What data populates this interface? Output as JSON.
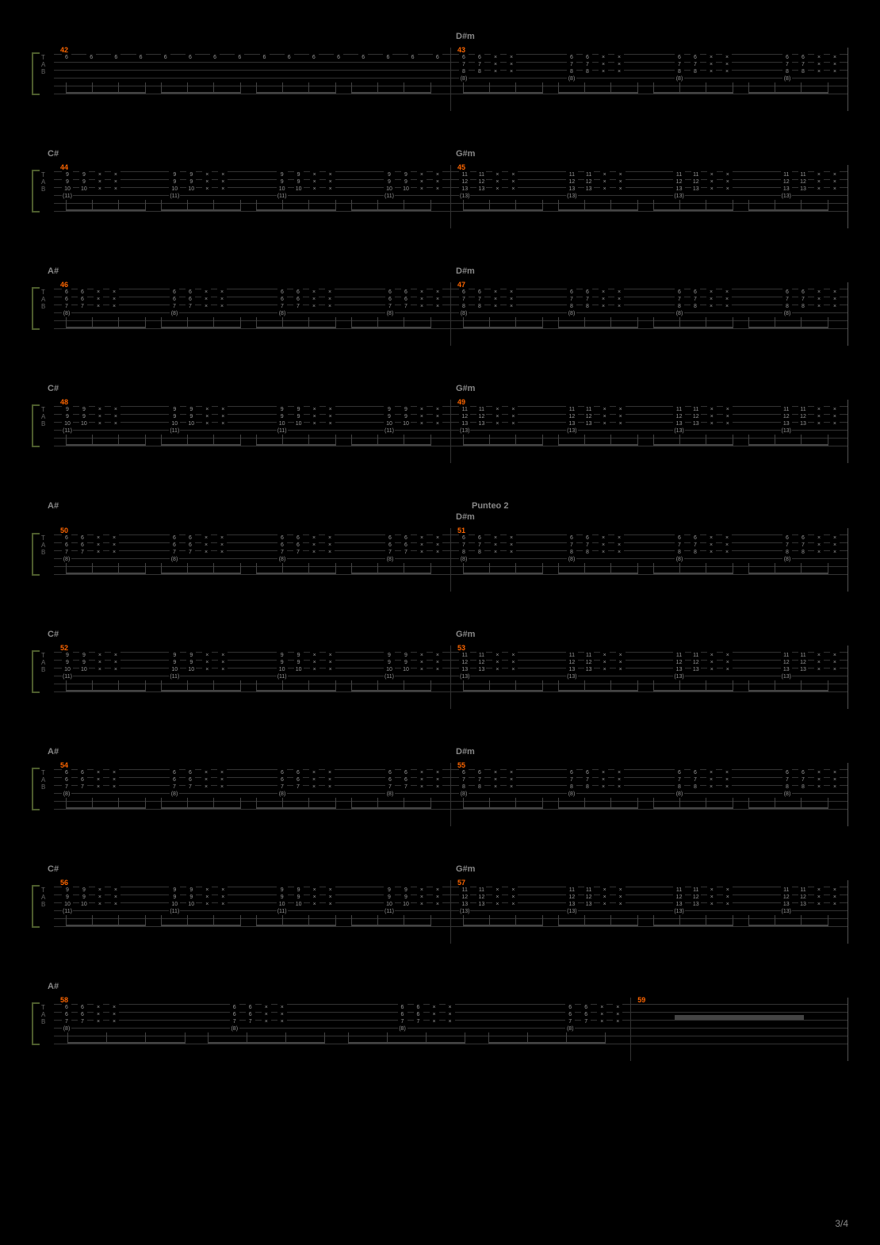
{
  "page_number": "3/4",
  "background_color": "#000000",
  "line_color": "#333333",
  "text_color": "#888888",
  "measure_num_color": "#ff6600",
  "bracket_color": "#4d5d2d",
  "tab_label": [
    "T",
    "A",
    "B"
  ],
  "systems": [
    {
      "chords": [
        "",
        "D#m"
      ],
      "section": "",
      "measures": [
        {
          "num": "42",
          "type": "single_line",
          "frets": [
            "6",
            "6",
            "6",
            "6",
            "6",
            "6",
            "6",
            "6",
            "6",
            "6",
            "6",
            "6",
            "6",
            "6",
            "6",
            "6"
          ],
          "string_idx": 4
        },
        {
          "num": "43",
          "type": "chord_pattern",
          "stacks": [
            [
              "6",
              "7",
              "8",
              "(8)"
            ],
            [
              "6",
              "7",
              "8",
              ""
            ]
          ],
          "repeat": 4
        }
      ]
    },
    {
      "chords": [
        "C#",
        "G#m"
      ],
      "section": "",
      "measures": [
        {
          "num": "44",
          "type": "chord_pattern",
          "stacks": [
            [
              "9",
              "9",
              "10",
              "(11)"
            ],
            [
              "9",
              "9",
              "10",
              ""
            ]
          ],
          "repeat": 4
        },
        {
          "num": "45",
          "type": "chord_pattern",
          "stacks": [
            [
              "11",
              "12",
              "13",
              "(13)"
            ],
            [
              "11",
              "12",
              "13",
              ""
            ]
          ],
          "repeat": 4
        }
      ]
    },
    {
      "chords": [
        "A#",
        "D#m"
      ],
      "section": "",
      "measures": [
        {
          "num": "46",
          "type": "chord_pattern",
          "stacks": [
            [
              "6",
              "6",
              "7",
              "(8)"
            ],
            [
              "6",
              "6",
              "7",
              ""
            ]
          ],
          "repeat": 4
        },
        {
          "num": "47",
          "type": "chord_pattern",
          "stacks": [
            [
              "6",
              "7",
              "8",
              "(8)"
            ],
            [
              "6",
              "7",
              "8",
              ""
            ]
          ],
          "repeat": 4
        }
      ]
    },
    {
      "chords": [
        "C#",
        "G#m"
      ],
      "section": "",
      "measures": [
        {
          "num": "48",
          "type": "chord_pattern",
          "stacks": [
            [
              "9",
              "9",
              "10",
              "(11)"
            ],
            [
              "9",
              "9",
              "10",
              ""
            ]
          ],
          "repeat": 4
        },
        {
          "num": "49",
          "type": "chord_pattern",
          "stacks": [
            [
              "11",
              "12",
              "13",
              "(13)"
            ],
            [
              "11",
              "12",
              "13",
              ""
            ]
          ],
          "repeat": 4
        }
      ]
    },
    {
      "chords": [
        "A#",
        "D#m"
      ],
      "section": "Punteo 2",
      "measures": [
        {
          "num": "50",
          "type": "chord_pattern",
          "stacks": [
            [
              "6",
              "6",
              "7",
              "(8)"
            ],
            [
              "6",
              "6",
              "7",
              ""
            ]
          ],
          "repeat": 4
        },
        {
          "num": "51",
          "type": "chord_pattern",
          "stacks": [
            [
              "6",
              "7",
              "8",
              "(8)"
            ],
            [
              "6",
              "7",
              "8",
              ""
            ]
          ],
          "repeat": 4
        }
      ]
    },
    {
      "chords": [
        "C#",
        "G#m"
      ],
      "section": "",
      "measures": [
        {
          "num": "52",
          "type": "chord_pattern",
          "stacks": [
            [
              "9",
              "9",
              "10",
              "(11)"
            ],
            [
              "9",
              "9",
              "10",
              ""
            ]
          ],
          "repeat": 4
        },
        {
          "num": "53",
          "type": "chord_pattern",
          "stacks": [
            [
              "11",
              "12",
              "13",
              "(13)"
            ],
            [
              "11",
              "12",
              "13",
              ""
            ]
          ],
          "repeat": 4
        }
      ]
    },
    {
      "chords": [
        "A#",
        "D#m"
      ],
      "section": "",
      "measures": [
        {
          "num": "54",
          "type": "chord_pattern",
          "stacks": [
            [
              "6",
              "6",
              "7",
              "(8)"
            ],
            [
              "6",
              "6",
              "7",
              ""
            ]
          ],
          "repeat": 4
        },
        {
          "num": "55",
          "type": "chord_pattern",
          "stacks": [
            [
              "6",
              "7",
              "8",
              "(8)"
            ],
            [
              "6",
              "7",
              "8",
              ""
            ]
          ],
          "repeat": 4
        }
      ]
    },
    {
      "chords": [
        "C#",
        "G#m"
      ],
      "section": "",
      "measures": [
        {
          "num": "56",
          "type": "chord_pattern",
          "stacks": [
            [
              "9",
              "9",
              "10",
              "(11)"
            ],
            [
              "9",
              "9",
              "10",
              ""
            ]
          ],
          "repeat": 4
        },
        {
          "num": "57",
          "type": "chord_pattern",
          "stacks": [
            [
              "11",
              "12",
              "13",
              "(13)"
            ],
            [
              "11",
              "12",
              "13",
              ""
            ]
          ],
          "repeat": 4
        }
      ]
    },
    {
      "chords": [
        "A#",
        ""
      ],
      "section": "",
      "measures": [
        {
          "num": "58",
          "type": "chord_pattern_wide",
          "stacks": [
            [
              "6",
              "6",
              "7",
              "(8)"
            ],
            [
              "6",
              "6",
              "7",
              ""
            ]
          ],
          "repeat": 4
        },
        {
          "num": "59",
          "type": "rest"
        }
      ]
    }
  ]
}
